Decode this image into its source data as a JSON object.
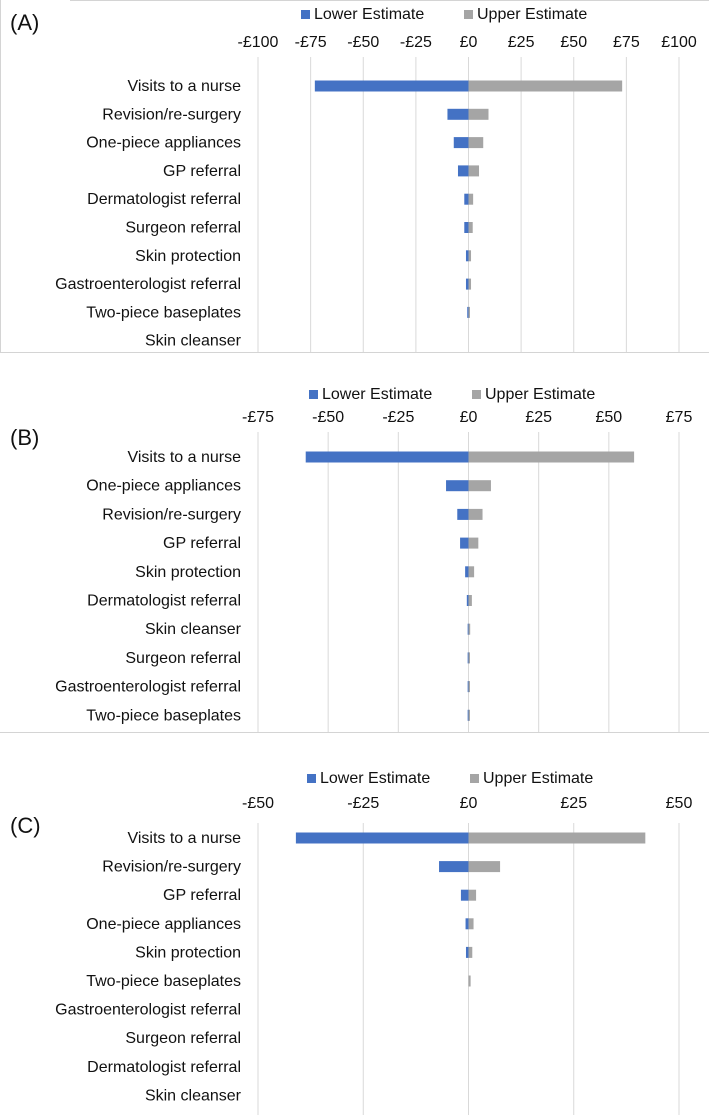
{
  "chart_data": [
    {
      "type": "bar",
      "orientation": "horizontal",
      "subtype": "tornado",
      "panel_label": "(A)",
      "legend": [
        "Lower Estimate",
        "Upper Estimate"
      ],
      "xlim": [
        -100,
        100
      ],
      "tick_values": [
        -100,
        -75,
        -50,
        -25,
        0,
        25,
        50,
        75,
        100
      ],
      "tick_labels": [
        "-£100",
        "-£75",
        "-£50",
        "-£25",
        "£0",
        "£25",
        "£50",
        "£75",
        "£100"
      ],
      "categories": [
        "Visits to a nurse",
        "Revision/re-surgery",
        "One-piece appliances",
        "GP referral",
        "Dermatologist referral",
        "Surgeon referral",
        "Skin protection",
        "Gastroenterologist referral",
        "Two-piece baseplates",
        "Skin cleanser"
      ],
      "series": [
        {
          "name": "Lower Estimate",
          "values": [
            -73,
            -10,
            -7,
            -5,
            -2,
            -2,
            -1.2,
            -1.2,
            -0.6,
            0
          ]
        },
        {
          "name": "Upper Estimate",
          "values": [
            73,
            9.5,
            7,
            5,
            2.2,
            2,
            1.2,
            1.2,
            0.6,
            0
          ]
        }
      ]
    },
    {
      "type": "bar",
      "orientation": "horizontal",
      "subtype": "tornado",
      "panel_label": "(B)",
      "legend": [
        "Lower Estimate",
        "Upper Estimate"
      ],
      "xlim": [
        -75,
        75
      ],
      "tick_values": [
        -75,
        -50,
        -25,
        0,
        25,
        50,
        75
      ],
      "tick_labels": [
        "-£75",
        "-£50",
        "-£25",
        "£0",
        "£25",
        "£50",
        "£75"
      ],
      "categories": [
        "Visits to a nurse",
        "One-piece appliances",
        "Revision/re-surgery",
        "GP referral",
        "Skin protection",
        "Dermatologist referral",
        "Skin cleanser",
        "Surgeon referral",
        "Gastroenterologist referral",
        "Two-piece baseplates"
      ],
      "series": [
        {
          "name": "Lower Estimate",
          "values": [
            -58,
            -8,
            -4,
            -3,
            -1.2,
            -0.6,
            -0.3,
            -0.3,
            -0.3,
            -0.3
          ]
        },
        {
          "name": "Upper Estimate",
          "values": [
            59,
            8,
            5,
            3.5,
            2,
            1.2,
            0.6,
            0.5,
            0.5,
            0.5
          ]
        }
      ]
    },
    {
      "type": "bar",
      "orientation": "horizontal",
      "subtype": "tornado",
      "panel_label": "(C)",
      "legend": [
        "Lower Estimate",
        "Upper Estimate"
      ],
      "xlim": [
        -50,
        50
      ],
      "tick_values": [
        -50,
        -25,
        0,
        25,
        50
      ],
      "tick_labels": [
        "-£50",
        "-£25",
        "£0",
        "£25",
        "£50"
      ],
      "categories": [
        "Visits to a nurse",
        "Revision/re-surgery",
        "GP referral",
        "One-piece appliances",
        "Skin protection",
        "Two-piece baseplates",
        "Gastroenterologist referral",
        "Surgeon referral",
        "Dermatologist referral",
        "Skin cleanser"
      ],
      "series": [
        {
          "name": "Lower Estimate",
          "values": [
            -41,
            -7,
            -1.8,
            -0.7,
            -0.6,
            0,
            0,
            0,
            0,
            0
          ]
        },
        {
          "name": "Upper Estimate",
          "values": [
            42,
            7.5,
            1.8,
            1.2,
            0.9,
            0.5,
            0,
            0,
            0,
            0
          ]
        }
      ]
    }
  ],
  "colors": {
    "lower": "#4472c4",
    "upper": "#a5a5a5",
    "grid": "#d9d9d9",
    "text": "#111111"
  }
}
